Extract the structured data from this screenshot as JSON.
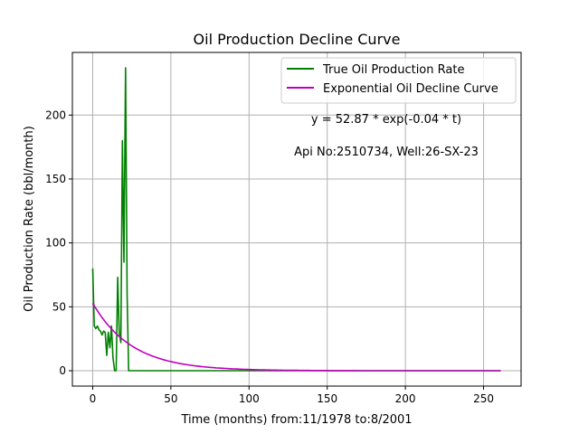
{
  "chart_data": {
    "type": "line",
    "title": "Oil Production Decline Curve",
    "xlabel": "Time (months) from:11/1978 to:8/2001",
    "ylabel": "Oil Production Rate (bbl/month)",
    "xlim": [
      -13,
      274
    ],
    "ylim": [
      -12,
      249
    ],
    "xticks": [
      0,
      50,
      100,
      150,
      200,
      250
    ],
    "yticks": [
      0,
      50,
      100,
      150,
      200
    ],
    "grid": true,
    "legend_position": "top-right",
    "annotations": [
      "y = 52.87 * exp(-0.04 * t)",
      "Api No:2510734, Well:26-SX-23"
    ],
    "series": [
      {
        "name": "True Oil Production Rate",
        "color": "#008000",
        "x": [
          0,
          1,
          2,
          3,
          4,
          5,
          6,
          7,
          8,
          9,
          10,
          11,
          12,
          13,
          14,
          15,
          16,
          17,
          18,
          19,
          20,
          21,
          22,
          23,
          30,
          50,
          100,
          150,
          200,
          261
        ],
        "y": [
          80,
          35,
          33,
          35,
          32,
          31,
          28,
          31,
          30,
          12,
          30,
          18,
          35,
          10,
          0,
          0,
          73,
          30,
          22,
          180,
          85,
          237,
          60,
          0,
          0,
          0,
          0,
          0,
          0,
          0
        ]
      },
      {
        "name": "Exponential Oil Decline Curve",
        "color": "#bf00bf",
        "model": {
          "a": 52.87,
          "b": 0.04
        },
        "x_range": [
          0,
          261
        ]
      }
    ]
  }
}
